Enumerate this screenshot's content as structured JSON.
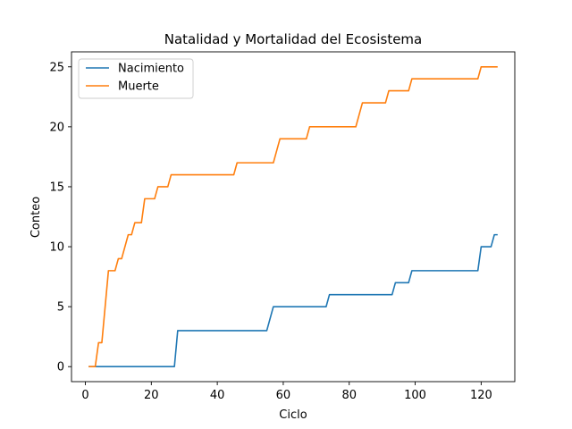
{
  "chart_data": {
    "type": "line",
    "title": "Natalidad y Mortalidad del Ecosistema",
    "xlabel": "Ciclo",
    "ylabel": "Conteo",
    "xlim": [
      -4.2,
      130.2
    ],
    "ylim": [
      -1.25,
      26.25
    ],
    "xticks": [
      0,
      20,
      40,
      60,
      80,
      100,
      120
    ],
    "yticks": [
      0,
      5,
      10,
      15,
      20,
      25
    ],
    "grid": false,
    "legend_position": "upper-left",
    "series": [
      {
        "name": "Nacimiento",
        "color": "#1f77b4",
        "points": [
          [
            1,
            0
          ],
          [
            27,
            0
          ],
          [
            28,
            3
          ],
          [
            55,
            3
          ],
          [
            57,
            5
          ],
          [
            73,
            5
          ],
          [
            74,
            6
          ],
          [
            93,
            6
          ],
          [
            94,
            7
          ],
          [
            98,
            7
          ],
          [
            99,
            8
          ],
          [
            119,
            8
          ],
          [
            120,
            10
          ],
          [
            123,
            10
          ],
          [
            124,
            11
          ],
          [
            125,
            11
          ]
        ]
      },
      {
        "name": "Muerte",
        "color": "#ff7f0e",
        "points": [
          [
            1,
            0
          ],
          [
            3,
            0
          ],
          [
            4,
            2
          ],
          [
            5,
            2
          ],
          [
            7,
            8
          ],
          [
            9,
            8
          ],
          [
            10,
            9
          ],
          [
            11,
            9
          ],
          [
            13,
            11
          ],
          [
            14,
            11
          ],
          [
            15,
            12
          ],
          [
            17,
            12
          ],
          [
            18,
            14
          ],
          [
            21,
            14
          ],
          [
            22,
            15
          ],
          [
            25,
            15
          ],
          [
            26,
            16
          ],
          [
            45,
            16
          ],
          [
            46,
            17
          ],
          [
            57,
            17
          ],
          [
            59,
            19
          ],
          [
            67,
            19
          ],
          [
            68,
            20
          ],
          [
            82,
            20
          ],
          [
            84,
            22
          ],
          [
            91,
            22
          ],
          [
            92,
            23
          ],
          [
            98,
            23
          ],
          [
            99,
            24
          ],
          [
            119,
            24
          ],
          [
            120,
            25
          ],
          [
            125,
            25
          ]
        ]
      }
    ]
  }
}
